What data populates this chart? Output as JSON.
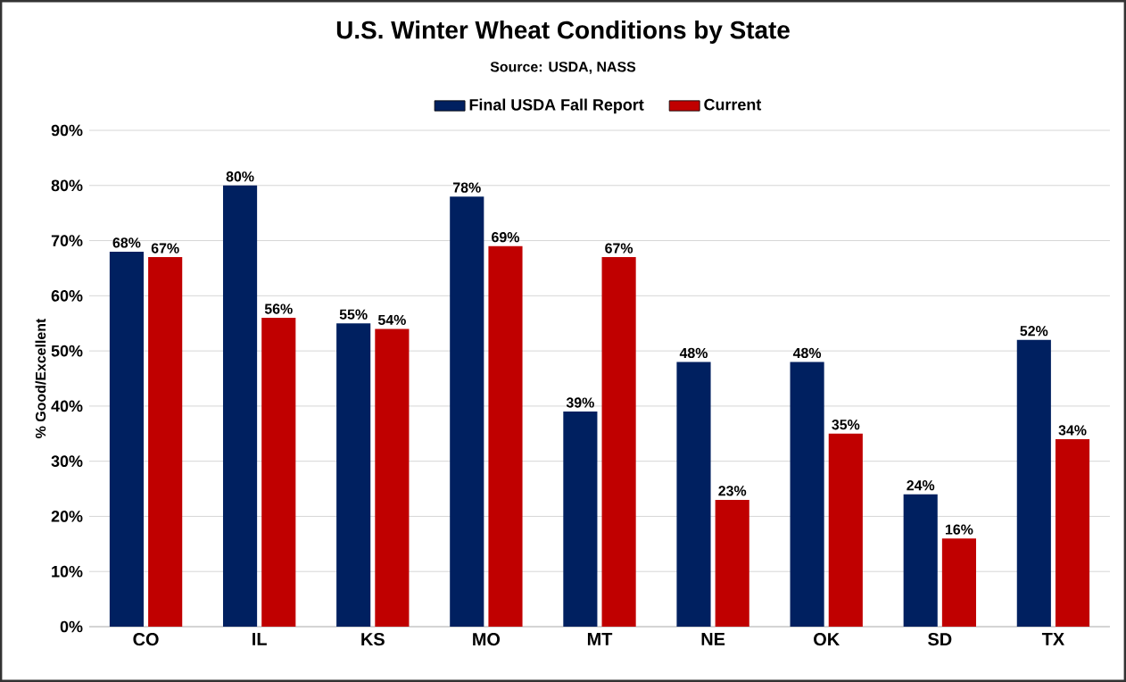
{
  "chart_data": {
    "type": "bar",
    "title": "U.S. Winter Wheat Conditions by State",
    "subtitle": "Source: USDA, NASS",
    "ylabel": "% Good/Excellent",
    "categories": [
      "CO",
      "IL",
      "KS",
      "MO",
      "MT",
      "NE",
      "OK",
      "SD",
      "TX"
    ],
    "series": [
      {
        "name": "Final USDA Fall Report",
        "color": "#002060",
        "values": [
          68,
          80,
          55,
          78,
          39,
          48,
          48,
          24,
          52
        ],
        "value_labels": [
          "68%",
          "80%",
          "55%",
          "78%",
          "39%",
          "48%",
          "48%",
          "24%",
          "52%"
        ]
      },
      {
        "name": "Current",
        "color": "#c00000",
        "values": [
          67,
          56,
          54,
          69,
          67,
          23,
          35,
          16,
          34
        ],
        "value_labels": [
          "67%",
          "56%",
          "54%",
          "69%",
          "67%",
          "23%",
          "35%",
          "16%",
          "34%"
        ]
      }
    ],
    "ylim": [
      0,
      90
    ],
    "yticks": [
      {
        "value": 0,
        "label": "0%"
      },
      {
        "value": 10,
        "label": "10%"
      },
      {
        "value": 20,
        "label": "20%"
      },
      {
        "value": 30,
        "label": "30%"
      },
      {
        "value": 40,
        "label": "40%"
      },
      {
        "value": 50,
        "label": "50%"
      },
      {
        "value": 60,
        "label": "60%"
      },
      {
        "value": 70,
        "label": "70%"
      },
      {
        "value": 80,
        "label": "80%"
      },
      {
        "value": 90,
        "label": "90%"
      }
    ],
    "grid": "y",
    "legend": "top"
  }
}
